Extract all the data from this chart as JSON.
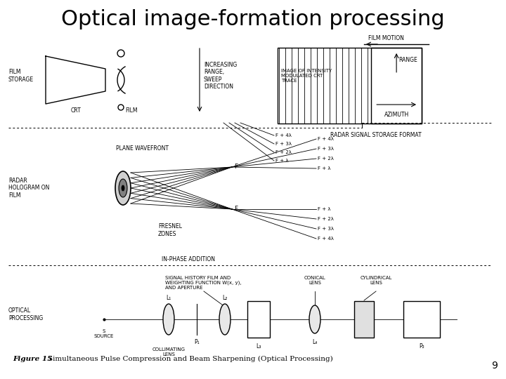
{
  "title": "Optical image-formation processing",
  "title_fontsize": 22,
  "title_font": "sans-serif",
  "page_number": "9",
  "background_color": "#ffffff",
  "text_color": "#000000",
  "fig_width": 7.2,
  "fig_height": 5.4,
  "dpi": 100,
  "caption_italic": "Figure 15",
  "caption_normal": "    Simultaneous Pulse Compression and Beam Sharpening (Optical Processing)",
  "top": {
    "film_storage": "FILM\nSTORAGE",
    "crt": "CRT",
    "film": "FILM",
    "incr_range": "INCREASING\nRANGE,\nSWEEP\nDIRECTION",
    "film_motion": "FILM MOTION",
    "image_label": "IMAGE OF INTENSITY\nMODULATED CRT\nTRACE",
    "range_label": "RANGE",
    "azimuth_label": "AZIMUTH",
    "radar_format": "RADAR SIGNAL STORAGE FORMAT",
    "wl_top": [
      "F + 4λ",
      "F + 3λ",
      "F + 2λ",
      "F + λ"
    ]
  },
  "middle": {
    "radar_hologram": "RADAR\nHOLOGRAM ON\nFILM",
    "plane_wavefront": "PLANE WAVEFRONT",
    "fresnel_zones": "FRESNEL\nZONES",
    "in_phase": "IN-PHASE ADDITION",
    "F": "F",
    "wl_top": [
      "F + 4λ",
      "F + 3λ",
      "F + 2λ",
      "F + λ"
    ],
    "wl_bot": [
      "F + λ",
      "F + 2λ",
      "F + 3λ",
      "F + 4λ"
    ]
  },
  "bottom": {
    "optical_proc": "OPTICAL\nPROCESSING",
    "signal_hist": "SIGNAL HISTORY FILM AND\nWEIGHTING FUNCTION W(x, y),\nAND APERTURE",
    "conical": "CONICAL\nLENS",
    "cylindrical": "CYLINDRICAL\nLENS",
    "source": "S\nSOURCE",
    "collimating": "COLLIMATING\nLENS",
    "L1": "L₁",
    "L2": "L₂",
    "L3": "L₃",
    "L4": "L₄",
    "P1": "P₁",
    "P2": "P₂"
  }
}
